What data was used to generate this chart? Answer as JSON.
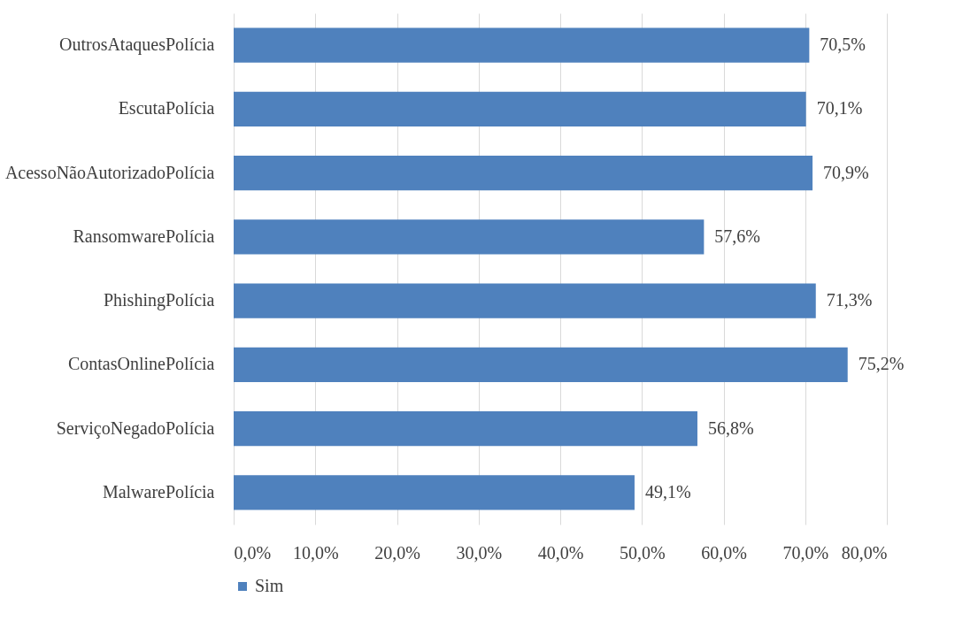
{
  "chart_data": {
    "type": "bar",
    "orientation": "horizontal",
    "categories": [
      "OutrosAtaquesPolícia",
      "EscutaPolícia",
      "AcessoNãoAutorizadoPolícia",
      "RansomwarePolícia",
      "PhishingPolícia",
      "ContasOnlinePolícia",
      "ServiçoNegadoPolícia",
      "MalwarePolícia"
    ],
    "series": [
      {
        "name": "Sim",
        "color": "#4f81bd",
        "values": [
          70.5,
          70.1,
          70.9,
          57.6,
          71.3,
          75.2,
          56.8,
          49.1
        ],
        "value_labels": [
          "70,5%",
          "70,1%",
          "70,9%",
          "57,6%",
          "71,3%",
          "75,2%",
          "56,8%",
          "49,1%"
        ]
      }
    ],
    "xlim": [
      0,
      80
    ],
    "xticks": [
      {
        "value": 0,
        "label": "0,0%"
      },
      {
        "value": 10,
        "label": "10,0%"
      },
      {
        "value": 20,
        "label": "20,0%"
      },
      {
        "value": 30,
        "label": "30,0%"
      },
      {
        "value": 40,
        "label": "40,0%"
      },
      {
        "value": 50,
        "label": "50,0%"
      },
      {
        "value": 60,
        "label": "60,0%"
      },
      {
        "value": 70,
        "label": "70,0%"
      },
      {
        "value": 80,
        "label": "80,0%"
      }
    ],
    "grid": "x",
    "legend": "bottom"
  }
}
